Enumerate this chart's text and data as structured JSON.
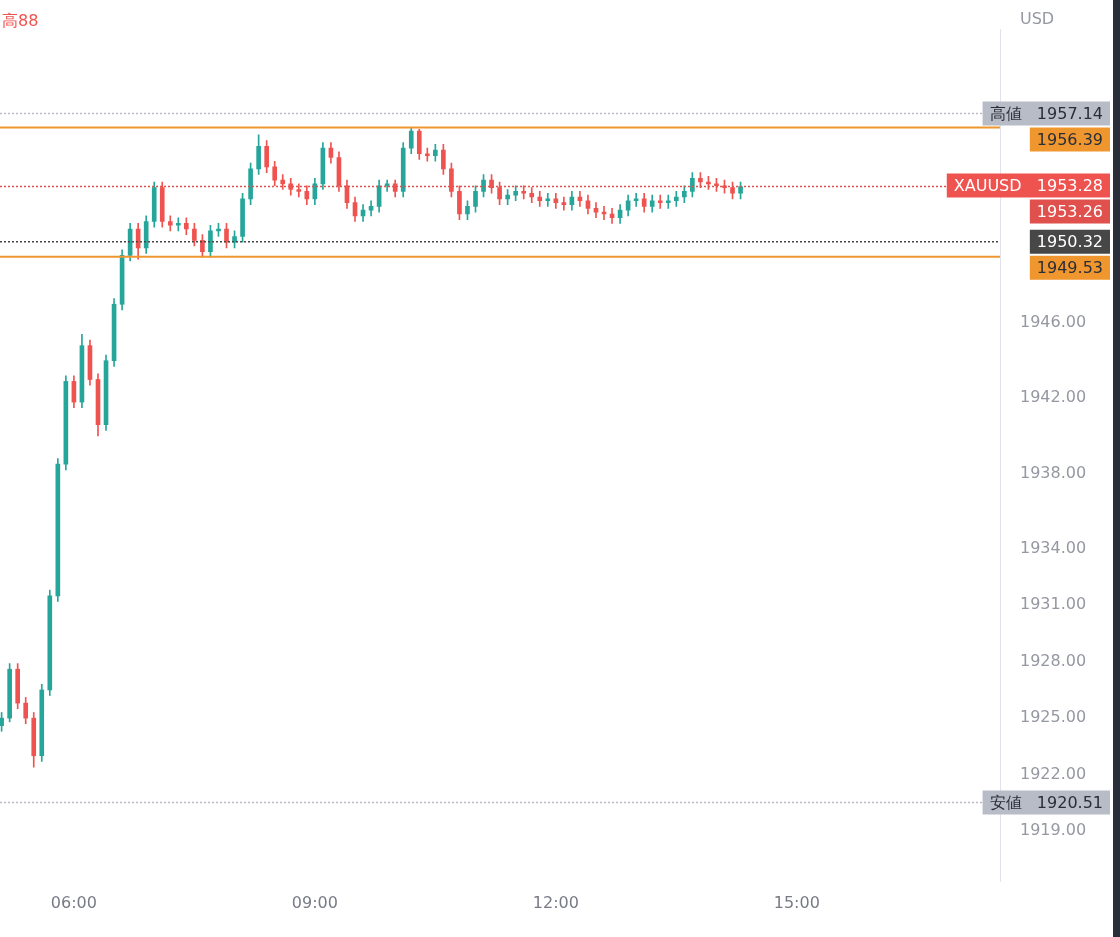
{
  "chart_data": {
    "type": "candlestick",
    "ylabel": "USD",
    "annotations": [
      "高88",
      "XAUUSD   1953.28"
    ],
    "x": [
      5.1,
      5.2,
      5.3,
      5.4,
      5.5,
      5.6,
      5.7,
      5.8,
      5.9,
      6.0,
      6.1,
      6.2,
      6.3,
      6.4,
      6.5,
      6.6,
      6.7,
      6.8,
      6.9,
      7.0,
      7.1,
      7.2,
      7.3,
      7.4,
      7.5,
      7.6,
      7.7,
      7.8,
      7.9,
      8.0,
      8.1,
      8.2,
      8.3,
      8.4,
      8.5,
      8.6,
      8.7,
      8.8,
      8.9,
      9.0,
      9.1,
      9.2,
      9.3,
      9.4,
      9.5,
      9.6,
      9.7,
      9.8,
      9.9,
      10.0,
      10.1,
      10.2,
      10.3,
      10.4,
      10.5,
      10.6,
      10.7,
      10.8,
      10.9,
      11.0,
      11.1,
      11.2,
      11.3,
      11.4,
      11.5,
      11.6,
      11.7,
      11.8,
      11.9,
      12.0,
      12.1,
      12.2,
      12.3,
      12.4,
      12.5,
      12.6,
      12.7,
      12.8,
      12.9,
      13.0,
      13.1,
      13.2,
      13.3,
      13.4,
      13.5,
      13.6,
      13.7,
      13.8,
      13.9,
      14.0,
      14.1,
      14.2,
      14.3
    ],
    "ohlc": [
      [
        1924.6,
        1925.3,
        1924.3,
        1925.0
      ],
      [
        1925.0,
        1927.9,
        1924.8,
        1927.6
      ],
      [
        1927.6,
        1927.9,
        1925.5,
        1925.8
      ],
      [
        1925.8,
        1926.1,
        1924.7,
        1925.0
      ],
      [
        1925.0,
        1925.3,
        1922.4,
        1923.0
      ],
      [
        1923.0,
        1926.8,
        1922.7,
        1926.5
      ],
      [
        1926.5,
        1931.8,
        1926.2,
        1931.5
      ],
      [
        1931.5,
        1938.8,
        1931.2,
        1938.5
      ],
      [
        1938.5,
        1943.2,
        1938.2,
        1942.9
      ],
      [
        1942.9,
        1943.2,
        1941.5,
        1941.8
      ],
      [
        1941.8,
        1945.4,
        1941.5,
        1944.8
      ],
      [
        1944.8,
        1945.1,
        1942.7,
        1943.0
      ],
      [
        1943.0,
        1943.3,
        1940.0,
        1940.6
      ],
      [
        1940.6,
        1944.3,
        1940.3,
        1944.0
      ],
      [
        1944.0,
        1947.3,
        1943.7,
        1947.0
      ],
      [
        1947.0,
        1949.9,
        1946.7,
        1949.6
      ],
      [
        1949.6,
        1951.3,
        1949.3,
        1951.0
      ],
      [
        1951.0,
        1951.3,
        1949.4,
        1950.0
      ],
      [
        1950.0,
        1951.7,
        1949.7,
        1951.4
      ],
      [
        1951.4,
        1953.5,
        1951.1,
        1953.2
      ],
      [
        1953.2,
        1953.5,
        1951.1,
        1951.4
      ],
      [
        1951.4,
        1951.7,
        1950.9,
        1951.2
      ],
      [
        1951.2,
        1951.6,
        1950.9,
        1951.3
      ],
      [
        1951.3,
        1951.6,
        1950.7,
        1951.0
      ],
      [
        1951.0,
        1951.3,
        1950.1,
        1950.4
      ],
      [
        1950.4,
        1950.7,
        1949.5,
        1949.8
      ],
      [
        1949.8,
        1951.2,
        1949.5,
        1950.9
      ],
      [
        1950.9,
        1951.3,
        1950.6,
        1951.0
      ],
      [
        1951.0,
        1951.3,
        1950.0,
        1950.3
      ],
      [
        1950.3,
        1950.9,
        1950.0,
        1950.6
      ],
      [
        1950.6,
        1952.9,
        1950.3,
        1952.6
      ],
      [
        1952.6,
        1954.5,
        1952.3,
        1954.2
      ],
      [
        1954.2,
        1956.0,
        1953.9,
        1955.4
      ],
      [
        1955.4,
        1955.7,
        1954.0,
        1954.3
      ],
      [
        1954.3,
        1954.6,
        1953.3,
        1953.6
      ],
      [
        1953.6,
        1953.9,
        1953.1,
        1953.4
      ],
      [
        1953.4,
        1953.7,
        1952.8,
        1953.1
      ],
      [
        1953.1,
        1953.4,
        1952.7,
        1953.0
      ],
      [
        1953.0,
        1953.3,
        1952.3,
        1952.6
      ],
      [
        1952.6,
        1953.7,
        1952.3,
        1953.4
      ],
      [
        1953.4,
        1955.6,
        1953.1,
        1955.3
      ],
      [
        1955.3,
        1955.6,
        1954.5,
        1954.8
      ],
      [
        1954.8,
        1955.1,
        1953.0,
        1953.3
      ],
      [
        1953.3,
        1953.6,
        1952.1,
        1952.4
      ],
      [
        1952.4,
        1952.7,
        1951.4,
        1951.7
      ],
      [
        1951.7,
        1952.3,
        1951.4,
        1952.0
      ],
      [
        1952.0,
        1952.5,
        1951.7,
        1952.2
      ],
      [
        1952.2,
        1953.6,
        1951.9,
        1953.3
      ],
      [
        1953.3,
        1953.6,
        1953.0,
        1953.4
      ],
      [
        1953.4,
        1953.6,
        1952.7,
        1953.0
      ],
      [
        1953.0,
        1955.6,
        1952.7,
        1955.3
      ],
      [
        1955.3,
        1956.39,
        1955.0,
        1956.2
      ],
      [
        1956.2,
        1956.3,
        1954.7,
        1955.0
      ],
      [
        1955.0,
        1955.3,
        1954.6,
        1954.9
      ],
      [
        1954.9,
        1955.5,
        1954.6,
        1955.2
      ],
      [
        1955.2,
        1955.5,
        1953.9,
        1954.2
      ],
      [
        1954.2,
        1954.5,
        1952.7,
        1953.0
      ],
      [
        1953.0,
        1953.3,
        1951.5,
        1951.8
      ],
      [
        1951.8,
        1952.5,
        1951.5,
        1952.2
      ],
      [
        1952.2,
        1953.3,
        1951.9,
        1953.0
      ],
      [
        1953.0,
        1953.9,
        1952.7,
        1953.6
      ],
      [
        1953.6,
        1953.9,
        1952.9,
        1953.2
      ],
      [
        1953.2,
        1953.5,
        1952.3,
        1952.6
      ],
      [
        1952.6,
        1953.1,
        1952.3,
        1952.8
      ],
      [
        1952.8,
        1953.3,
        1952.5,
        1953.0
      ],
      [
        1953.0,
        1953.3,
        1952.6,
        1952.9
      ],
      [
        1952.9,
        1953.2,
        1952.4,
        1952.7
      ],
      [
        1952.7,
        1953.0,
        1952.2,
        1952.5
      ],
      [
        1952.5,
        1952.9,
        1952.2,
        1952.6
      ],
      [
        1952.6,
        1952.9,
        1952.1,
        1952.4
      ],
      [
        1952.4,
        1952.7,
        1952.0,
        1952.3
      ],
      [
        1952.3,
        1953.0,
        1952.0,
        1952.7
      ],
      [
        1952.7,
        1953.0,
        1952.2,
        1952.5
      ],
      [
        1952.5,
        1952.8,
        1951.8,
        1952.1
      ],
      [
        1952.1,
        1952.4,
        1951.6,
        1951.9
      ],
      [
        1951.9,
        1952.2,
        1951.5,
        1951.8
      ],
      [
        1951.8,
        1952.1,
        1951.3,
        1951.6
      ],
      [
        1951.6,
        1952.3,
        1951.3,
        1952.0
      ],
      [
        1952.0,
        1952.8,
        1951.7,
        1952.5
      ],
      [
        1952.5,
        1952.9,
        1952.2,
        1952.6
      ],
      [
        1952.6,
        1952.9,
        1951.9,
        1952.2
      ],
      [
        1952.2,
        1952.8,
        1951.9,
        1952.5
      ],
      [
        1952.5,
        1952.8,
        1952.1,
        1952.4
      ],
      [
        1952.4,
        1952.8,
        1952.1,
        1952.5
      ],
      [
        1952.5,
        1953.0,
        1952.2,
        1952.7
      ],
      [
        1952.7,
        1953.3,
        1952.4,
        1953.0
      ],
      [
        1953.0,
        1954.0,
        1952.7,
        1953.7
      ],
      [
        1953.7,
        1954.0,
        1953.2,
        1953.5
      ],
      [
        1953.5,
        1953.8,
        1953.1,
        1953.4
      ],
      [
        1953.4,
        1953.7,
        1953.0,
        1953.3
      ],
      [
        1953.3,
        1953.6,
        1952.9,
        1953.2
      ],
      [
        1953.2,
        1953.5,
        1952.6,
        1952.9
      ],
      [
        1952.9,
        1953.5,
        1952.6,
        1953.26
      ]
    ],
    "xlim": [
      5.08,
      17.53
    ],
    "xticks": [
      {
        "value": 6,
        "label": "06:00"
      },
      {
        "value": 9,
        "label": "09:00"
      },
      {
        "value": 12,
        "label": "12:00"
      },
      {
        "value": 15,
        "label": "15:00"
      }
    ],
    "ylim": [
      1916.3,
      1961.6
    ],
    "yticks": [
      {
        "value": 1919,
        "label": "1919.00"
      },
      {
        "value": 1922,
        "label": "1922.00"
      },
      {
        "value": 1925,
        "label": "1925.00"
      },
      {
        "value": 1928,
        "label": "1928.00"
      },
      {
        "value": 1931,
        "label": "1931.00"
      },
      {
        "value": 1934,
        "label": "1934.00"
      },
      {
        "value": 1938,
        "label": "1938.00"
      },
      {
        "value": 1942,
        "label": "1942.00"
      },
      {
        "value": 1946,
        "label": "1946.00"
      }
    ],
    "ref_lines": [
      {
        "axis": "y",
        "value": 1957.14,
        "label": "高値   1957.14",
        "color": "#b8bcc6",
        "line_style": "dotted"
      },
      {
        "axis": "y",
        "value": 1956.39,
        "label": "1956.39",
        "color": "#f0962e",
        "line_style": "solid"
      },
      {
        "axis": "y",
        "value": 1953.26,
        "label": "1953.26",
        "color": "#e0504d",
        "line_style": "dotted"
      },
      {
        "axis": "y",
        "value": 1950.32,
        "label": "1950.32",
        "color": "#474747",
        "line_style": "dotted"
      },
      {
        "axis": "y",
        "value": 1949.53,
        "label": "1949.53",
        "color": "#f0962e",
        "line_style": "solid"
      },
      {
        "axis": "y",
        "value": 1920.51,
        "label": "安値   1920.51",
        "color": "#b8bcc6",
        "line_style": "dotted"
      }
    ]
  }
}
